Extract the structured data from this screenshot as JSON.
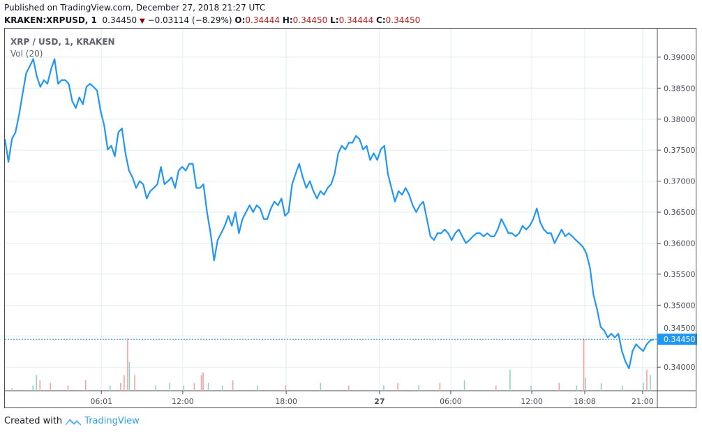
{
  "header": {
    "published": "Published on TradingView.com, December 27, 2018 21:27 UTC",
    "symbol": "KRAKEN:XRPUSD, 1",
    "last": "0.34450",
    "direction_icon": "down-triangle-icon",
    "change": "−0.03114 (−8.29%)",
    "o_label": "O:",
    "o": "0.34444",
    "h_label": "H:",
    "h": "0.34450",
    "l_label": "L:",
    "l": "0.34444",
    "c_label": "C:",
    "c": "0.34450"
  },
  "legend": {
    "series": "XRP / USD, 1, KRAKEN",
    "volume": "Vol (20)"
  },
  "footer": {
    "created": "Created with",
    "brand": "TradingView",
    "logo_icon": "tradingview-logo-icon"
  },
  "colors": {
    "line": "#2196f3",
    "grid": "#e1ecf2",
    "up_vol": "#8fd3c8",
    "down_vol": "#f5a3a0",
    "price_tag": "#2196f3"
  },
  "chart_data": {
    "type": "line",
    "title": "",
    "xlabel": "",
    "ylabel": "",
    "grid": true,
    "ylim": [
      0.3362,
      0.3946
    ],
    "xlim": [
      0,
      185
    ],
    "y_ticks": [
      "0.39000",
      "0.38500",
      "0.38000",
      "0.37500",
      "0.37000",
      "0.36500",
      "0.36000",
      "0.35500",
      "0.35000",
      "0.34500",
      "0.34000"
    ],
    "y_tick_values": [
      0.39,
      0.385,
      0.38,
      0.375,
      0.37,
      0.365,
      0.36,
      0.355,
      0.35,
      0.345,
      0.34
    ],
    "x_ticks": [
      {
        "label": "06:01",
        "at": 27.5
      },
      {
        "label": "12:00",
        "at": 50.7
      },
      {
        "label": "18:00",
        "at": 80.2
      },
      {
        "label": "27",
        "at": 106.8,
        "bold": true
      },
      {
        "label": "06:00",
        "at": 127.1
      },
      {
        "label": "12:00",
        "at": 150.2
      },
      {
        "label": "18:08",
        "at": 165.3
      },
      {
        "label": "21:00",
        "at": 181.8
      }
    ],
    "last_price": {
      "value": 0.3445,
      "label": "0.34450"
    },
    "series": [
      {
        "values": [
          0.3768,
          0.3731,
          0.3768,
          0.3779,
          0.3807,
          0.3841,
          0.3874,
          0.3885,
          0.3897,
          0.3869,
          0.3852,
          0.3863,
          0.3857,
          0.388,
          0.3897,
          0.3857,
          0.3863,
          0.3863,
          0.3857,
          0.3829,
          0.3818,
          0.3835,
          0.3824,
          0.3852,
          0.3857,
          0.3852,
          0.3846,
          0.3813,
          0.379,
          0.3751,
          0.3757,
          0.374,
          0.3779,
          0.3785,
          0.3745,
          0.3717,
          0.3706,
          0.3689,
          0.37,
          0.3695,
          0.3672,
          0.3684,
          0.3689,
          0.3695,
          0.3723,
          0.3695,
          0.37,
          0.3706,
          0.3689,
          0.3717,
          0.3723,
          0.3717,
          0.3728,
          0.3728,
          0.3689,
          0.3689,
          0.3695,
          0.365,
          0.3616,
          0.3572,
          0.3605,
          0.3616,
          0.3628,
          0.3644,
          0.3628,
          0.365,
          0.3616,
          0.3639,
          0.365,
          0.3661,
          0.365,
          0.3661,
          0.3656,
          0.3639,
          0.3639,
          0.3656,
          0.3667,
          0.3661,
          0.3672,
          0.3644,
          0.365,
          0.3695,
          0.3712,
          0.3728,
          0.3706,
          0.3689,
          0.37,
          0.3684,
          0.3672,
          0.3684,
          0.3678,
          0.3689,
          0.3695,
          0.3712,
          0.3745,
          0.3757,
          0.3751,
          0.3762,
          0.3762,
          0.3773,
          0.3768,
          0.3751,
          0.3757,
          0.3734,
          0.3745,
          0.3734,
          0.3751,
          0.3757,
          0.3712,
          0.3689,
          0.3667,
          0.3684,
          0.3678,
          0.3689,
          0.3678,
          0.3661,
          0.365,
          0.3661,
          0.3667,
          0.3639,
          0.3611,
          0.3605,
          0.3616,
          0.3616,
          0.3622,
          0.3616,
          0.3605,
          0.3616,
          0.3622,
          0.3611,
          0.36,
          0.3605,
          0.3611,
          0.3616,
          0.3616,
          0.3611,
          0.3616,
          0.3611,
          0.3611,
          0.3622,
          0.3639,
          0.3628,
          0.3616,
          0.3616,
          0.3611,
          0.3616,
          0.3628,
          0.3622,
          0.3628,
          0.3639,
          0.3656,
          0.3633,
          0.3622,
          0.3616,
          0.3616,
          0.36,
          0.3611,
          0.3622,
          0.3611,
          0.3616,
          0.3611,
          0.3605,
          0.36,
          0.3594,
          0.3583,
          0.356,
          0.3516,
          0.3493,
          0.3465,
          0.3459,
          0.3448,
          0.3454,
          0.3448,
          0.3454,
          0.3426,
          0.3409,
          0.3398,
          0.3426,
          0.3437,
          0.3431,
          0.3426,
          0.3437,
          0.3443,
          0.3445
        ]
      }
    ],
    "volume": [
      {
        "at": 2,
        "v": 1,
        "up": false
      },
      {
        "at": 8,
        "v": 2,
        "up": true
      },
      {
        "at": 9,
        "v": 6,
        "up": true
      },
      {
        "at": 10,
        "v": 4,
        "up": false
      },
      {
        "at": 13,
        "v": 3,
        "up": false
      },
      {
        "at": 18,
        "v": 2,
        "up": false
      },
      {
        "at": 23,
        "v": 4,
        "up": false
      },
      {
        "at": 30,
        "v": 2,
        "up": true
      },
      {
        "at": 33,
        "v": 3,
        "up": false
      },
      {
        "at": 34,
        "v": 6,
        "up": false
      },
      {
        "at": 35,
        "v": 20,
        "up": false
      },
      {
        "at": 35.5,
        "v": 11,
        "up": true
      },
      {
        "at": 37,
        "v": 6,
        "up": false
      },
      {
        "at": 43,
        "v": 2,
        "up": true
      },
      {
        "at": 47,
        "v": 3,
        "up": true
      },
      {
        "at": 51,
        "v": 2,
        "up": true
      },
      {
        "at": 54,
        "v": 3,
        "up": false
      },
      {
        "at": 56,
        "v": 6,
        "up": false
      },
      {
        "at": 56.5,
        "v": 7,
        "up": false
      },
      {
        "at": 58,
        "v": 3,
        "up": true
      },
      {
        "at": 62,
        "v": 2,
        "up": true
      },
      {
        "at": 65,
        "v": 4,
        "up": false
      },
      {
        "at": 72,
        "v": 2,
        "up": true
      },
      {
        "at": 80,
        "v": 2,
        "up": false
      },
      {
        "at": 90,
        "v": 3,
        "up": true
      },
      {
        "at": 98,
        "v": 2,
        "up": false
      },
      {
        "at": 108,
        "v": 2,
        "up": true
      },
      {
        "at": 112,
        "v": 3,
        "up": false
      },
      {
        "at": 118,
        "v": 2,
        "up": true
      },
      {
        "at": 124,
        "v": 3,
        "up": false
      },
      {
        "at": 131,
        "v": 4,
        "up": true
      },
      {
        "at": 140,
        "v": 2,
        "up": false
      },
      {
        "at": 144,
        "v": 8,
        "up": true
      },
      {
        "at": 150,
        "v": 2,
        "up": true
      },
      {
        "at": 158,
        "v": 3,
        "up": false
      },
      {
        "at": 163,
        "v": 2,
        "up": true
      },
      {
        "at": 165,
        "v": 20,
        "up": false
      },
      {
        "at": 165.5,
        "v": 5,
        "up": true
      },
      {
        "at": 170,
        "v": 3,
        "up": true
      },
      {
        "at": 176,
        "v": 2,
        "up": true
      },
      {
        "at": 182,
        "v": 3,
        "up": true
      },
      {
        "at": 183,
        "v": 8,
        "up": false
      },
      {
        "at": 184,
        "v": 6,
        "up": true
      }
    ]
  }
}
